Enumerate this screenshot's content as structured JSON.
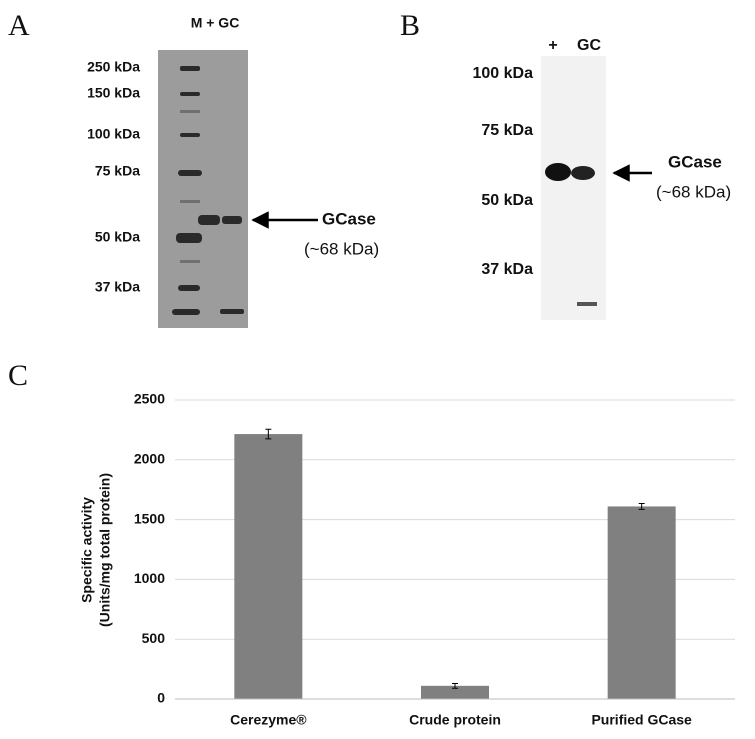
{
  "panels": {
    "a": {
      "label": "A",
      "header": "M + GC",
      "markers": [
        "250 kDa",
        "150 kDa",
        "100 kDa",
        "75 kDa",
        "50 kDa",
        "37 kDa"
      ],
      "band": "GCase",
      "band_size": "(~68 kDa)"
    },
    "b": {
      "label": "B",
      "lanes": [
        "+",
        "GC"
      ],
      "markers": [
        "100 kDa",
        "75 kDa",
        "50 kDa",
        "37 kDa"
      ],
      "band": "GCase",
      "band_size": "(~68 kDa)"
    }
  },
  "chart_data": {
    "type": "bar",
    "panel_label": "C",
    "ylabel": [
      "Specific activity",
      "(Units/mg total protein)"
    ],
    "categories": [
      "Cerezyme®",
      "Crude protein",
      "Purified GCase"
    ],
    "values": [
      2215,
      110,
      1610
    ],
    "errors": [
      40,
      20,
      25
    ],
    "color": "#808080",
    "ylim": [
      0,
      2500
    ],
    "yticks": [
      0,
      500,
      1000,
      1500,
      2000,
      2500
    ],
    "grid": true
  }
}
